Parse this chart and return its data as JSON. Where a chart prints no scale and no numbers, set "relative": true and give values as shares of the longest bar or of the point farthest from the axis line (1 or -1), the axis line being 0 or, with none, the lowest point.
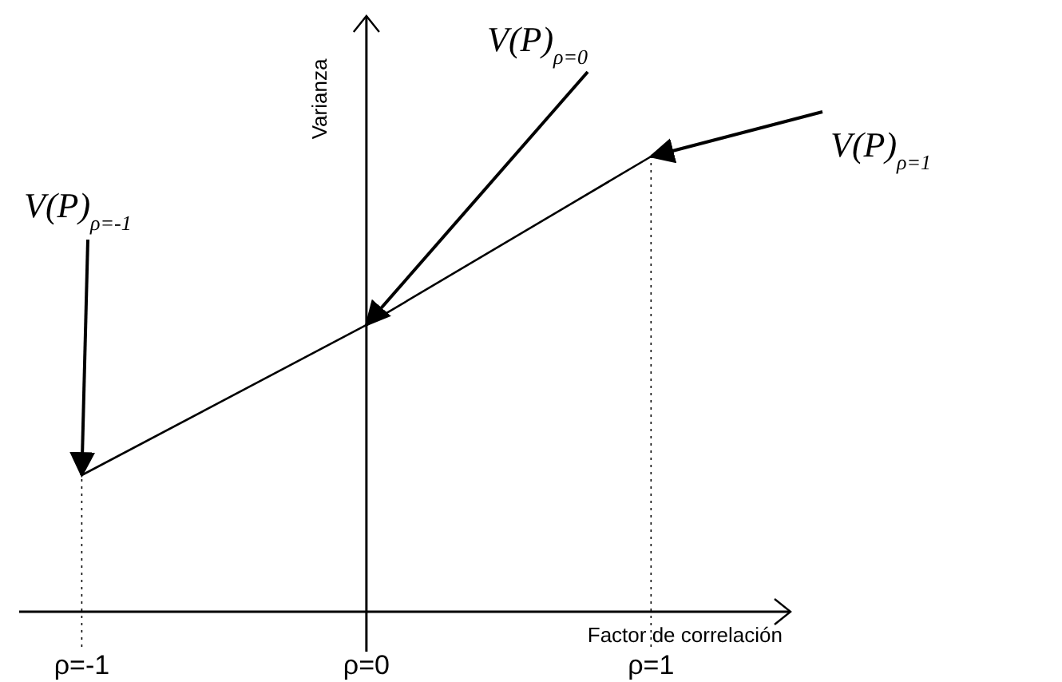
{
  "chart_data": {
    "type": "line",
    "relative": true,
    "xlabel": "Factor de correlación",
    "ylabel": "Varianza",
    "x": [
      -1,
      0,
      1
    ],
    "series": [
      {
        "color": "#000000",
        "values": [
          0.3,
          0.63,
          1
        ]
      }
    ],
    "xlim": [
      -1.22,
      1.49
    ],
    "xticks": [
      {
        "value": -1,
        "label": "ρ=-1"
      },
      {
        "value": 0,
        "label": "ρ=0"
      },
      {
        "value": 1,
        "label": "ρ=1"
      }
    ],
    "ref_lines": [
      {
        "axis": "x",
        "value": -1,
        "color": "#000000",
        "line_style": "dotted"
      },
      {
        "axis": "x",
        "value": 1,
        "color": "#000000",
        "line_style": "dotted"
      }
    ],
    "annotations": [
      {
        "text": "V(P)$_{ρ=0}$",
        "x": 0,
        "y": 0.63
      },
      {
        "text": "V(P)$_{ρ=1}$",
        "x": 1,
        "y": 1
      },
      {
        "text": "V(P)$_{ρ=-1}$",
        "x": -1,
        "y": 0.3
      }
    ],
    "grid": false,
    "line_style": "solid"
  }
}
